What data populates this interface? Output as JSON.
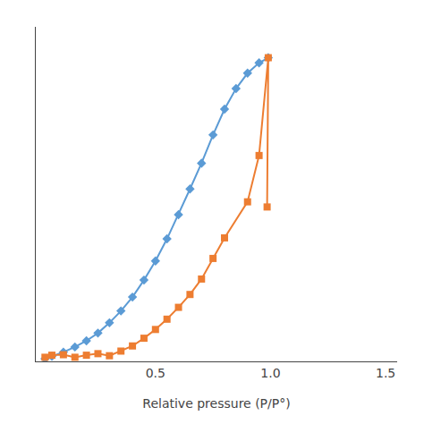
{
  "chart_data": {
    "type": "line",
    "x_label": "Relative pressure (P/P°)",
    "series": [
      {
        "color": "#5B9BD5",
        "marker": "diamond",
        "x": [
          0.02,
          0.05,
          0.1,
          0.15,
          0.2,
          0.25,
          0.3,
          0.35,
          0.4,
          0.45,
          0.5,
          0.55,
          0.6,
          0.65,
          0.7,
          0.75,
          0.8,
          0.85,
          0.9,
          0.95,
          0.99
        ],
        "values": [
          5,
          10,
          18,
          28,
          40,
          55,
          75,
          98,
          125,
          158,
          195,
          238,
          285,
          335,
          385,
          440,
          490,
          530,
          560,
          580,
          590
        ]
      },
      {
        "color": "#ED7D31",
        "marker": "square",
        "x": [
          0.02,
          0.05,
          0.1,
          0.15,
          0.2,
          0.25,
          0.3,
          0.35,
          0.4,
          0.45,
          0.5,
          0.55,
          0.6,
          0.65,
          0.7,
          0.75,
          0.8,
          0.9,
          0.95,
          0.99,
          0.985
        ],
        "values": [
          8,
          12,
          13,
          8,
          12,
          15,
          11,
          20,
          30,
          45,
          62,
          82,
          105,
          130,
          160,
          200,
          240,
          310,
          400,
          590,
          300
        ]
      }
    ],
    "xlim": [
      -0.02,
      1.55
    ],
    "ylim": [
      0,
      650
    ],
    "xticks": [
      0.5,
      {
        "value": 1.0,
        "label": "1.0"
      },
      1.5
    ],
    "tick_labels": "x",
    "grid": false
  }
}
